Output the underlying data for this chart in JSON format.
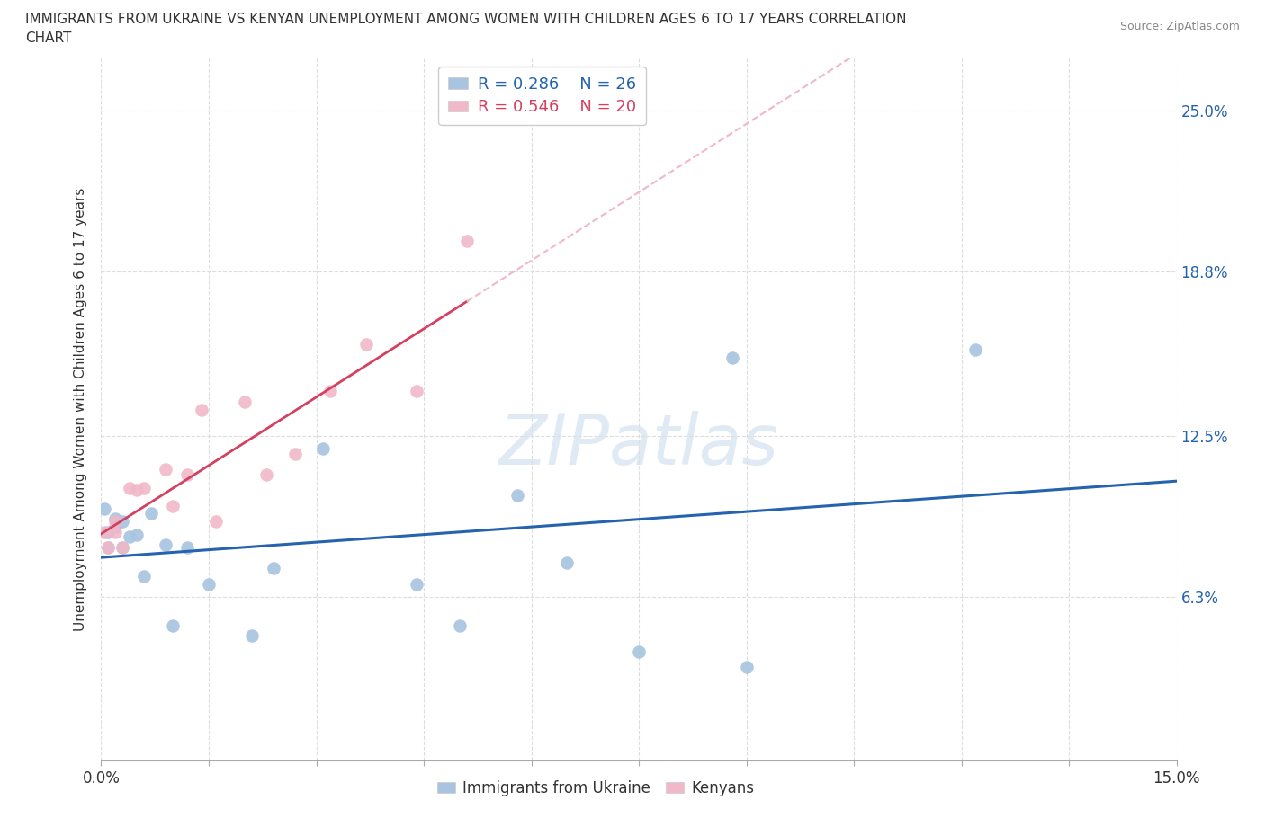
{
  "title_line1": "IMMIGRANTS FROM UKRAINE VS KENYAN UNEMPLOYMENT AMONG WOMEN WITH CHILDREN AGES 6 TO 17 YEARS CORRELATION",
  "title_line2": "CHART",
  "source_text": "Source: ZipAtlas.com",
  "ylabel": "Unemployment Among Women with Children Ages 6 to 17 years",
  "xlim": [
    0.0,
    0.15
  ],
  "ylim": [
    0.0,
    0.27
  ],
  "xticks": [
    0.0,
    0.015,
    0.03,
    0.045,
    0.06,
    0.075,
    0.09,
    0.105,
    0.12,
    0.135,
    0.15
  ],
  "ytick_positions": [
    0.063,
    0.125,
    0.188,
    0.25
  ],
  "ytick_labels": [
    "6.3%",
    "12.5%",
    "18.8%",
    "25.0%"
  ],
  "ukraine_x": [
    0.0005,
    0.001,
    0.001,
    0.002,
    0.002,
    0.003,
    0.003,
    0.004,
    0.005,
    0.006,
    0.007,
    0.009,
    0.01,
    0.012,
    0.015,
    0.021,
    0.024,
    0.031,
    0.044,
    0.05,
    0.058,
    0.065,
    0.075,
    0.088,
    0.09,
    0.122
  ],
  "ukraine_y": [
    0.097,
    0.088,
    0.082,
    0.09,
    0.093,
    0.092,
    0.082,
    0.086,
    0.087,
    0.071,
    0.095,
    0.083,
    0.052,
    0.082,
    0.068,
    0.048,
    0.074,
    0.12,
    0.068,
    0.052,
    0.102,
    0.076,
    0.042,
    0.155,
    0.036,
    0.158
  ],
  "kenya_x": [
    0.0005,
    0.001,
    0.002,
    0.002,
    0.003,
    0.004,
    0.005,
    0.006,
    0.009,
    0.01,
    0.012,
    0.014,
    0.016,
    0.02,
    0.023,
    0.027,
    0.032,
    0.037,
    0.044,
    0.051
  ],
  "kenya_y": [
    0.088,
    0.082,
    0.092,
    0.088,
    0.082,
    0.105,
    0.104,
    0.105,
    0.112,
    0.098,
    0.11,
    0.135,
    0.092,
    0.138,
    0.11,
    0.118,
    0.142,
    0.16,
    0.142,
    0.2
  ],
  "ukraine_color": "#a8c4e0",
  "kenya_color": "#f0b8c8",
  "ukraine_line_color": "#2563ae",
  "kenya_line_color": "#d44060",
  "kenya_dash_color": "#f0b8c8",
  "R_ukraine": 0.286,
  "N_ukraine": 26,
  "R_kenya": 0.546,
  "N_kenya": 20,
  "watermark": "ZIPatlas",
  "background_color": "#ffffff",
  "grid_color": "#dddddd",
  "tick_label_color": "#2563ae"
}
